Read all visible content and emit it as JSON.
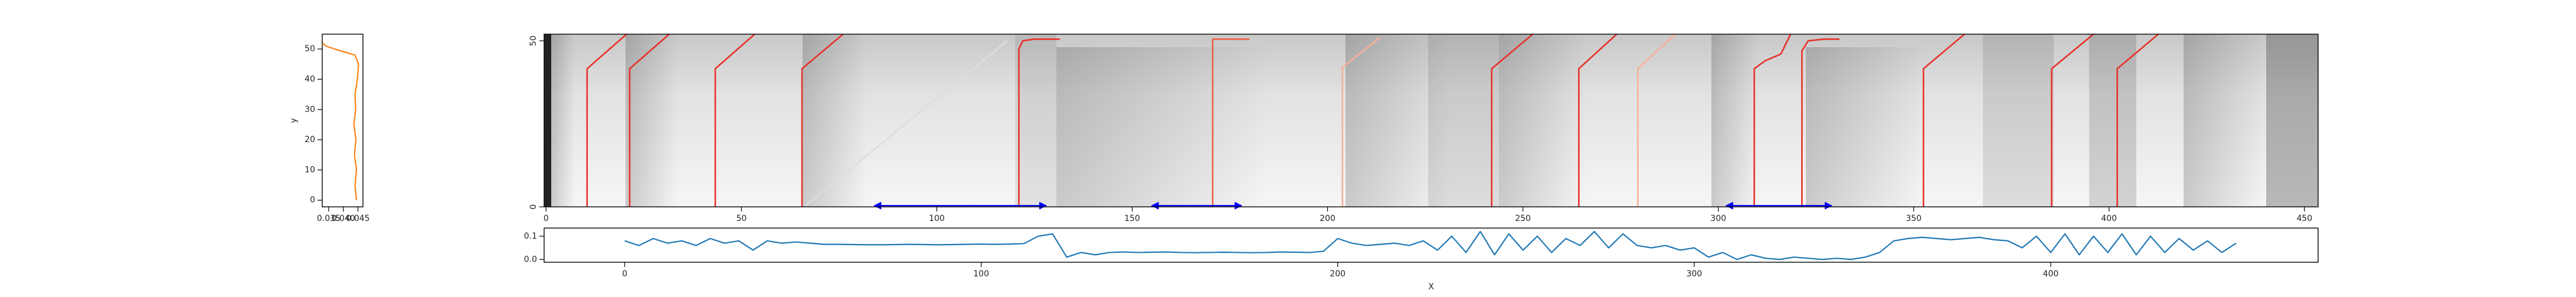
{
  "chart_data": [
    {
      "type": "line",
      "ylabel": "y",
      "xlim": [
        0.0328,
        0.0467
      ],
      "ylim": [
        -2.2,
        54.9
      ],
      "xticks": [
        0.035,
        {
          "value": 0.04,
          "label": "0.040"
        },
        0.045
      ],
      "yticks": [
        0,
        10,
        20,
        30,
        40,
        50
      ],
      "series": [
        {
          "color": "#ff7f0e",
          "x": [
            0.0445,
            0.044,
            0.0445,
            0.0438,
            0.0443,
            0.0436,
            0.0442,
            0.044,
            0.0448,
            0.0452,
            0.044,
            0.037,
            0.034,
            0.033
          ],
          "values": [
            0,
            5,
            10,
            15,
            20,
            25,
            30,
            35,
            40,
            45,
            48,
            50,
            51,
            52
          ]
        }
      ]
    },
    {
      "type": "heatmap",
      "xlim": [
        -0.5,
        453.5
      ],
      "ylim": [
        0,
        52
      ],
      "xticks": [
        0,
        50,
        100,
        150,
        200,
        250,
        300,
        350,
        400,
        450
      ],
      "yticks": [
        0,
        50
      ],
      "series": [
        {
          "color": "#dddddd",
          "x": [
            66,
            118
          ],
          "values": [
            0,
            50
          ]
        },
        {
          "color": "#e8312a",
          "x": [
            10.5,
            10.5,
            20.6
          ],
          "values": [
            0,
            41.6,
            52
          ]
        },
        {
          "color": "#e8312a",
          "x": [
            21.4,
            21.4,
            31.5
          ],
          "values": [
            0,
            41.6,
            52
          ]
        },
        {
          "color": "#e8312a",
          "x": [
            43.3,
            43.3,
            53.4
          ],
          "values": [
            0,
            41.6,
            52
          ]
        },
        {
          "color": "#e8312a",
          "x": [
            65.5,
            65.5,
            76
          ],
          "values": [
            0,
            41.6,
            52
          ]
        },
        {
          "color": "#e8312a",
          "x": [
            121,
            121,
            122,
            125,
            131.5
          ],
          "values": [
            0,
            47.5,
            50,
            50.5,
            50.5
          ]
        },
        {
          "color": "#f06043",
          "x": [
            170.6,
            170.6,
            180
          ],
          "values": [
            0,
            50.5,
            50.5
          ]
        },
        {
          "color": "#f7b09a",
          "x": [
            203.8,
            203.8,
            213.4
          ],
          "values": [
            0,
            42,
            51
          ]
        },
        {
          "color": "#e8312a",
          "x": [
            242,
            242,
            252.5
          ],
          "values": [
            0,
            41.6,
            52
          ]
        },
        {
          "color": "#e8312a",
          "x": [
            264.3,
            264.3,
            274
          ],
          "values": [
            0,
            41.6,
            52
          ]
        },
        {
          "color": "#f7b09a",
          "x": [
            279.4,
            279.4,
            289
          ],
          "values": [
            0,
            41.6,
            52
          ]
        },
        {
          "color": "#e8312a",
          "x": [
            309.2,
            309.2,
            312,
            316,
            318.5
          ],
          "values": [
            0,
            41.6,
            44,
            46,
            52
          ]
        },
        {
          "color": "#e8312a",
          "x": [
            321.4,
            321.4,
            323,
            327,
            331
          ],
          "values": [
            0,
            47,
            50,
            50.5,
            50.5
          ]
        },
        {
          "color": "#e8312a",
          "x": [
            352.5,
            352.5,
            363
          ],
          "values": [
            0,
            41.6,
            52
          ]
        },
        {
          "color": "#e8312a",
          "x": [
            385.3,
            385.3,
            396
          ],
          "values": [
            0,
            41.6,
            52
          ]
        },
        {
          "color": "#e8312a",
          "x": [
            402.1,
            402.1,
            412.6
          ],
          "values": [
            0,
            41.6,
            52
          ]
        }
      ],
      "interval_color": "#0000ff",
      "intervals": [
        {
          "start": 84,
          "end": 128
        },
        {
          "start": 155,
          "end": 178
        },
        {
          "start": 302,
          "end": 329
        }
      ]
    },
    {
      "type": "line",
      "xlabel": "X",
      "xlim": [
        -22.6,
        475
      ],
      "ylim": [
        -0.012,
        0.135
      ],
      "xticks": [
        0,
        100,
        200,
        300,
        400
      ],
      "yticks": [
        {
          "value": 0,
          "label": "0.0"
        },
        {
          "value": 0.1,
          "label": "0.1"
        }
      ],
      "series": [
        {
          "color": "#1f77b4",
          "x": [
            0,
            4,
            8,
            12,
            16,
            20,
            24,
            28,
            32,
            36,
            40,
            44,
            48,
            52,
            56,
            60,
            64,
            68,
            72,
            76,
            80,
            84,
            88,
            92,
            96,
            100,
            104,
            108,
            112,
            116,
            120,
            124,
            128,
            132,
            136,
            140,
            144,
            148,
            152,
            156,
            160,
            164,
            168,
            172,
            176,
            180,
            184,
            188,
            192,
            196,
            200,
            204,
            208,
            212,
            216,
            220,
            224,
            228,
            232,
            236,
            240,
            244,
            248,
            252,
            256,
            260,
            264,
            268,
            272,
            276,
            280,
            284,
            288,
            292,
            296,
            300,
            304,
            308,
            312,
            316,
            320,
            324,
            328,
            332,
            336,
            340,
            344,
            348,
            352,
            356,
            360,
            364,
            368,
            372,
            376,
            380,
            384,
            388,
            392,
            396,
            400,
            404,
            408,
            412,
            416,
            420,
            424,
            428,
            432,
            436,
            440,
            444,
            448,
            452
          ],
          "values": [
            0.08,
            0.06,
            0.09,
            0.07,
            0.08,
            0.06,
            0.09,
            0.07,
            0.08,
            0.04,
            0.08,
            0.07,
            0.075,
            0.07,
            0.065,
            0.065,
            0.064,
            0.063,
            0.063,
            0.064,
            0.065,
            0.064,
            0.063,
            0.064,
            0.065,
            0.066,
            0.065,
            0.066,
            0.068,
            0.1,
            0.11,
            0.01,
            0.03,
            0.02,
            0.03,
            0.032,
            0.03,
            0.031,
            0.032,
            0.03,
            0.029,
            0.03,
            0.031,
            0.03,
            0.029,
            0.03,
            0.032,
            0.031,
            0.03,
            0.035,
            0.09,
            0.07,
            0.06,
            0.065,
            0.07,
            0.06,
            0.08,
            0.04,
            0.1,
            0.03,
            0.12,
            0.02,
            0.11,
            0.04,
            0.1,
            0.03,
            0.09,
            0.06,
            0.12,
            0.05,
            0.11,
            0.06,
            0.05,
            0.06,
            0.04,
            0.05,
            0.01,
            0.03,
            0.0,
            0.02,
            0.005,
            0.0,
            0.01,
            0.005,
            0.0,
            0.005,
            0.0,
            0.01,
            0.03,
            0.08,
            0.09,
            0.095,
            0.09,
            0.085,
            0.09,
            0.095,
            0.085,
            0.08,
            0.05,
            0.1,
            0.03,
            0.11,
            0.02,
            0.1,
            0.03,
            0.11,
            0.02,
            0.1,
            0.03,
            0.09,
            0.04,
            0.08,
            0.03,
            0.07
          ]
        }
      ]
    }
  ]
}
